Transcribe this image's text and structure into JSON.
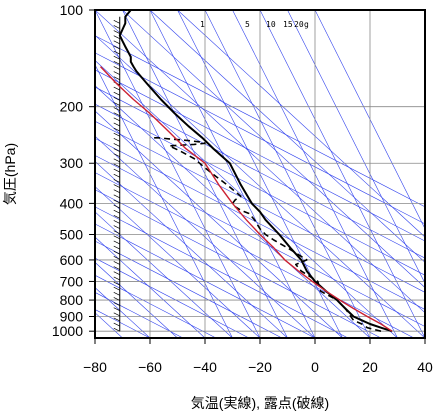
{
  "chart_data": {
    "type": "line",
    "xlabel": "気温(実線), 露点(破線)",
    "ylabel": "気圧(hPa)",
    "x_axis": {
      "range": [
        -80,
        40
      ],
      "ticks": [
        -80,
        -60,
        -40,
        -20,
        0,
        20,
        40
      ],
      "tick_labels": [
        "−80",
        "−60",
        "−40",
        "−20",
        "0",
        "20",
        "40"
      ]
    },
    "y_axis": {
      "scale": "log",
      "reversed": true,
      "range": [
        100,
        1050
      ],
      "ticks": [
        100,
        200,
        300,
        400,
        500,
        600,
        700,
        800,
        900,
        1000
      ],
      "tick_labels": [
        "100",
        "200",
        "300",
        "400",
        "500",
        "600",
        "700",
        "800",
        "900",
        "1000"
      ]
    },
    "grid": true,
    "mixing_ratio_labels": [
      "1",
      "5",
      "10",
      "15",
      "20",
      "g"
    ],
    "colors": {
      "temperature": "#000000",
      "dewpoint": "#000000",
      "parcel": "#cc2233",
      "guide_lines": "#3344ee",
      "grid": "#888888"
    },
    "series": [
      {
        "style": "solid",
        "points": [
          [
            28,
            1000
          ],
          [
            24,
            975
          ],
          [
            20,
            950
          ],
          [
            17,
            925
          ],
          [
            14,
            900
          ],
          [
            11,
            850
          ],
          [
            8,
            800
          ],
          [
            4,
            750
          ],
          [
            0,
            700
          ],
          [
            -3,
            650
          ],
          [
            -5,
            600
          ],
          [
            -9,
            550
          ],
          [
            -13,
            500
          ],
          [
            -18,
            450
          ],
          [
            -20,
            425
          ],
          [
            -23,
            400
          ],
          [
            -27,
            350
          ],
          [
            -31,
            300
          ],
          [
            -37,
            270
          ],
          [
            -41,
            250
          ],
          [
            -46,
            230
          ],
          [
            -51,
            210
          ],
          [
            -56,
            190
          ],
          [
            -61,
            170
          ],
          [
            -65,
            155
          ],
          [
            -66,
            150
          ],
          [
            -67,
            145
          ],
          [
            -67,
            140
          ],
          [
            -69,
            130
          ],
          [
            -70,
            125
          ],
          [
            -71,
            120
          ],
          [
            -70,
            115
          ],
          [
            -69,
            110
          ],
          [
            -69,
            105
          ],
          [
            -67,
            100
          ]
        ]
      },
      {
        "style": "dashed",
        "points": [
          [
            24,
            1000
          ],
          [
            19,
            975
          ],
          [
            17,
            950
          ],
          [
            14,
            925
          ],
          [
            13,
            900
          ],
          [
            11,
            850
          ],
          [
            8,
            800
          ],
          [
            2,
            750
          ],
          [
            1,
            700
          ],
          [
            -5,
            650
          ],
          [
            -7,
            620
          ],
          [
            -3,
            600
          ],
          [
            -10,
            550
          ],
          [
            -15,
            520
          ],
          [
            -18,
            500
          ],
          [
            -20,
            480
          ],
          [
            -22,
            450
          ],
          [
            -24,
            430
          ],
          [
            -27,
            420
          ],
          [
            -29,
            410
          ],
          [
            -30,
            400
          ],
          [
            -29,
            390
          ],
          [
            -27,
            380
          ],
          [
            -32,
            350
          ],
          [
            -36,
            330
          ],
          [
            -40,
            310
          ],
          [
            -44,
            290
          ],
          [
            -49,
            275
          ],
          [
            -53,
            265
          ],
          [
            -44,
            262
          ],
          [
            -40,
            260
          ],
          [
            -41,
            258
          ],
          [
            -46,
            255
          ],
          [
            -53,
            252
          ],
          [
            -57,
            250
          ],
          [
            -60,
            250
          ]
        ]
      },
      {
        "style": "parcel",
        "points": [
          [
            28,
            1000
          ],
          [
            24,
            950
          ],
          [
            19,
            900
          ],
          [
            14,
            850
          ],
          [
            9,
            800
          ],
          [
            4,
            750
          ],
          [
            -1,
            700
          ],
          [
            -6,
            650
          ],
          [
            -11,
            600
          ],
          [
            -15,
            550
          ],
          [
            -20,
            500
          ],
          [
            -25,
            450
          ],
          [
            -30,
            400
          ],
          [
            -35,
            350
          ],
          [
            -40,
            300
          ],
          [
            -47,
            270
          ],
          [
            -53,
            240
          ],
          [
            -60,
            210
          ],
          [
            -66,
            190
          ],
          [
            -72,
            170
          ],
          [
            -78,
            150
          ]
        ]
      }
    ]
  }
}
